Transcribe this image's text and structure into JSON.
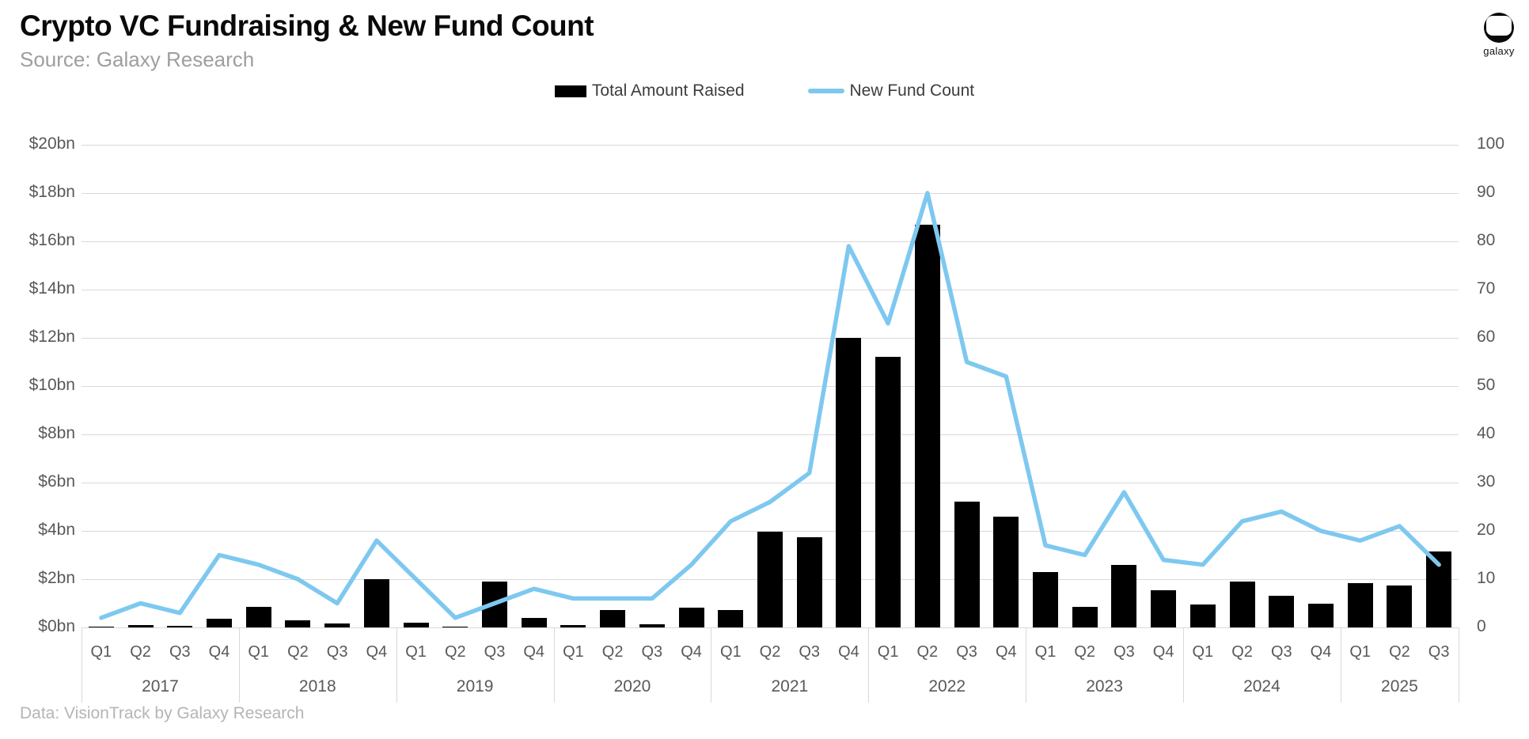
{
  "header": {
    "title": "Crypto VC Fundraising & New Fund Count",
    "subtitle": "Source: Galaxy Research"
  },
  "logo": {
    "label": "galaxy"
  },
  "legend": [
    {
      "label": "Total Amount Raised",
      "type": "bar",
      "color": "#000000"
    },
    {
      "label": "New Fund Count",
      "type": "line",
      "color": "#7EC8F0"
    }
  ],
  "footer": {
    "text": "Data: VisionTrack by Galaxy Research"
  },
  "chart_data": {
    "type": "bar+line",
    "title": "Crypto VC Fundraising & New Fund Count",
    "grid": true,
    "years": [
      {
        "label": "2017",
        "quarters": [
          "Q1",
          "Q2",
          "Q3",
          "Q4"
        ]
      },
      {
        "label": "2018",
        "quarters": [
          "Q1",
          "Q2",
          "Q3",
          "Q4"
        ]
      },
      {
        "label": "2019",
        "quarters": [
          "Q1",
          "Q2",
          "Q3",
          "Q4"
        ]
      },
      {
        "label": "2020",
        "quarters": [
          "Q1",
          "Q2",
          "Q3",
          "Q4"
        ]
      },
      {
        "label": "2021",
        "quarters": [
          "Q1",
          "Q2",
          "Q3",
          "Q4"
        ]
      },
      {
        "label": "2022",
        "quarters": [
          "Q1",
          "Q2",
          "Q3",
          "Q4"
        ]
      },
      {
        "label": "2023",
        "quarters": [
          "Q1",
          "Q2",
          "Q3",
          "Q4"
        ]
      },
      {
        "label": "2024",
        "quarters": [
          "Q1",
          "Q2",
          "Q3",
          "Q4"
        ]
      },
      {
        "label": "2025",
        "quarters": [
          "Q1",
          "Q2",
          "Q3"
        ]
      }
    ],
    "categories": [
      "Q1 2017",
      "Q2 2017",
      "Q3 2017",
      "Q4 2017",
      "Q1 2018",
      "Q2 2018",
      "Q3 2018",
      "Q4 2018",
      "Q1 2019",
      "Q2 2019",
      "Q3 2019",
      "Q4 2019",
      "Q1 2020",
      "Q2 2020",
      "Q3 2020",
      "Q4 2020",
      "Q1 2021",
      "Q2 2021",
      "Q3 2021",
      "Q4 2021",
      "Q1 2022",
      "Q2 2022",
      "Q3 2022",
      "Q4 2022",
      "Q1 2023",
      "Q2 2023",
      "Q3 2023",
      "Q4 2023",
      "Q1 2024",
      "Q2 2024",
      "Q3 2024",
      "Q4 2024",
      "Q1 2025",
      "Q2 2025",
      "Q3 2025"
    ],
    "series": [
      {
        "name": "Total Amount Raised",
        "type": "bar",
        "axis": "left",
        "color": "#000000",
        "unit": "$bn",
        "values": [
          0.02,
          0.09,
          0.08,
          0.36,
          0.85,
          0.3,
          0.16,
          2.0,
          0.2,
          0.04,
          1.9,
          0.4,
          0.1,
          0.73,
          0.13,
          0.82,
          0.72,
          3.98,
          3.75,
          12.0,
          11.2,
          16.7,
          5.2,
          4.6,
          2.3,
          0.85,
          2.6,
          1.55,
          0.95,
          1.9,
          1.3,
          1.0,
          1.85,
          1.75,
          3.15
        ]
      },
      {
        "name": "New Fund Count",
        "type": "line",
        "axis": "right",
        "color": "#7EC8F0",
        "values": [
          2,
          5,
          3,
          15,
          13,
          10,
          5,
          18,
          10,
          2,
          5,
          8,
          6,
          6,
          6,
          13,
          22,
          26,
          32,
          79,
          63,
          90,
          55,
          52,
          17,
          15,
          28,
          14,
          13,
          22,
          24,
          20,
          18,
          21,
          13
        ]
      }
    ],
    "left_axis": {
      "min": 0,
      "max": 20,
      "ticks": [
        "$0bn",
        "$2bn",
        "$4bn",
        "$6bn",
        "$8bn",
        "$10bn",
        "$12bn",
        "$14bn",
        "$16bn",
        "$18bn",
        "$20bn"
      ]
    },
    "right_axis": {
      "min": 0,
      "max": 100,
      "ticks": [
        "0",
        "10",
        "20",
        "30",
        "40",
        "50",
        "60",
        "70",
        "80",
        "90",
        "100"
      ]
    },
    "legend_position": "top-center"
  }
}
